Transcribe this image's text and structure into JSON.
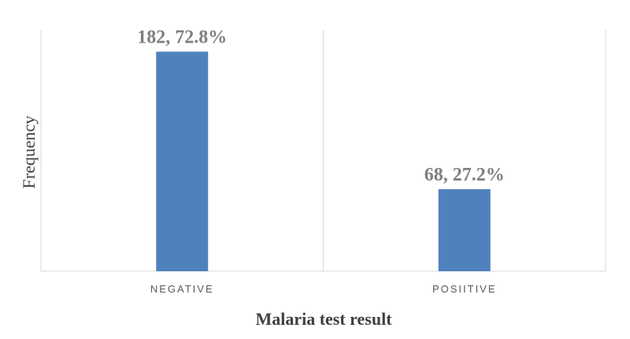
{
  "chart_data": {
    "type": "bar",
    "categories": [
      "NEGATIVE",
      "POSIITIVE"
    ],
    "values": [
      182,
      68
    ],
    "data_labels": [
      "182, 72.8%",
      "68, 27.2%"
    ],
    "xlabel": "Malaria test result",
    "ylabel": "Frequency",
    "ylim": [
      0,
      200
    ],
    "grid": false,
    "legend": "none",
    "bar_color": "#4f81bd",
    "axis_color": "#d9d9d9"
  }
}
